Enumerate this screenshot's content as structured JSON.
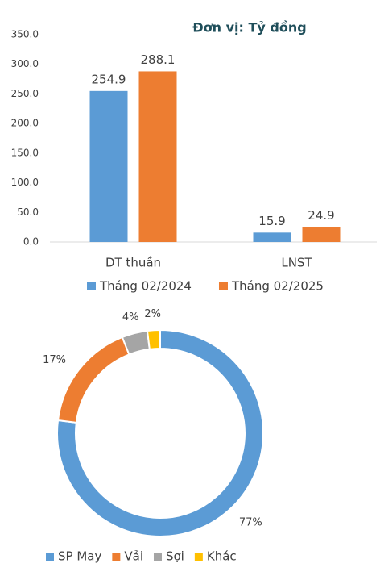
{
  "chart_data": [
    {
      "type": "bar",
      "annotation": "Đơn vị: Tỷ đồng",
      "categories": [
        "DT thuần",
        "LNST"
      ],
      "series": [
        {
          "name": "Tháng 02/2024",
          "color": "#5b9bd5",
          "values": [
            254.9,
            15.9
          ]
        },
        {
          "name": "Tháng 02/2025",
          "color": "#ed7d31",
          "values": [
            288.1,
            24.9
          ]
        }
      ],
      "ylim": [
        0,
        350
      ],
      "yticks": [
        {
          "value": 0,
          "label": "0.0"
        },
        {
          "value": 50,
          "label": "50.0"
        },
        {
          "value": 100,
          "label": "100.0"
        },
        {
          "value": 150,
          "label": "150.0"
        },
        {
          "value": 200,
          "label": "200.0"
        },
        {
          "value": 250,
          "label": "250.0"
        },
        {
          "value": 300,
          "label": "300.0"
        },
        {
          "value": 350,
          "label": "350.0"
        }
      ],
      "grid": false,
      "legend": "bottom"
    },
    {
      "type": "donut",
      "categories": [
        "SP May",
        "Vải",
        "Sợi",
        "Khác"
      ],
      "values": [
        77,
        17,
        4,
        2
      ],
      "value_labels": [
        "77%",
        "17%",
        "4%",
        "2%"
      ],
      "colors": [
        "#5b9bd5",
        "#ed7d31",
        "#a5a5a5",
        "#ffc000"
      ],
      "legend": "bottom"
    }
  ]
}
